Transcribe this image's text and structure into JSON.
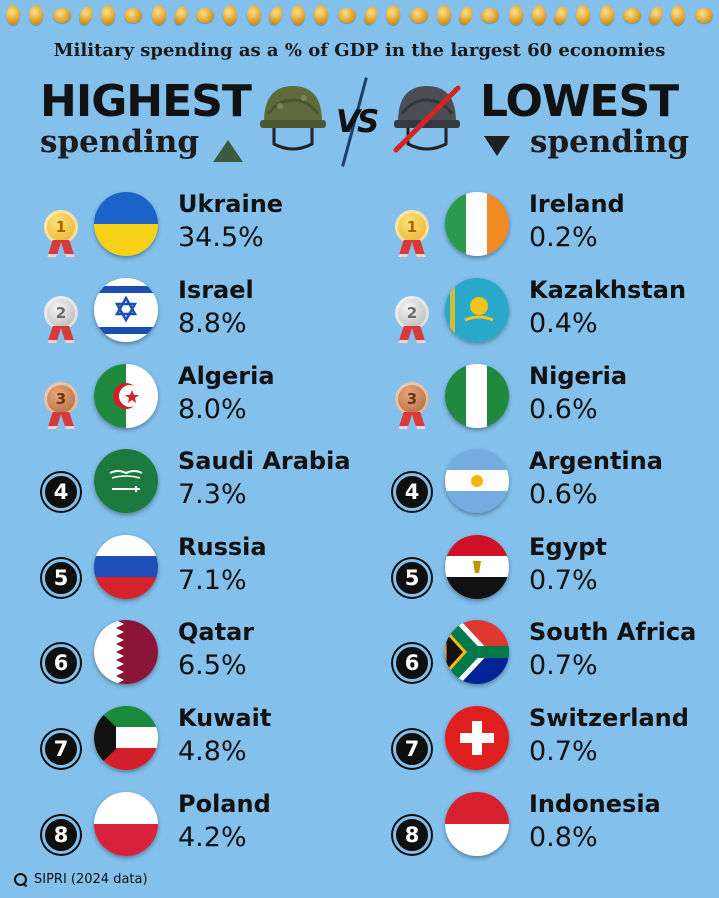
{
  "subtitle": "Military spending as a % of GDP in the largest 60 economies",
  "header": {
    "left_title": "HIGHEST",
    "left_sub": "spending",
    "vs": "VS",
    "right_title": "LOWEST",
    "right_sub": "spending"
  },
  "highest": [
    {
      "rank": "1",
      "country": "Ukraine",
      "value": "34.5%",
      "medal": "gold"
    },
    {
      "rank": "2",
      "country": "Israel",
      "value": "8.8%",
      "medal": "silver"
    },
    {
      "rank": "3",
      "country": "Algeria",
      "value": "8.0%",
      "medal": "bronze"
    },
    {
      "rank": "4",
      "country": "Saudi Arabia",
      "value": "7.3%"
    },
    {
      "rank": "5",
      "country": "Russia",
      "value": "7.1%"
    },
    {
      "rank": "6",
      "country": "Qatar",
      "value": "6.5%"
    },
    {
      "rank": "7",
      "country": "Kuwait",
      "value": "4.8%"
    },
    {
      "rank": "8",
      "country": "Poland",
      "value": "4.2%"
    }
  ],
  "lowest": [
    {
      "rank": "1",
      "country": "Ireland",
      "value": "0.2%",
      "medal": "gold"
    },
    {
      "rank": "2",
      "country": "Kazakhstan",
      "value": "0.4%",
      "medal": "silver"
    },
    {
      "rank": "3",
      "country": "Nigeria",
      "value": "0.6%",
      "medal": "bronze"
    },
    {
      "rank": "4",
      "country": "Argentina",
      "value": "0.6%"
    },
    {
      "rank": "5",
      "country": "Egypt",
      "value": "0.7%"
    },
    {
      "rank": "6",
      "country": "South Africa",
      "value": "0.7%"
    },
    {
      "rank": "7",
      "country": "Switzerland",
      "value": "0.7%"
    },
    {
      "rank": "8",
      "country": "Indonesia",
      "value": "0.8%"
    }
  ],
  "source": "SIPRI (2024 data)",
  "colors": {
    "background": "#83c0ec",
    "text": "#121212"
  }
}
